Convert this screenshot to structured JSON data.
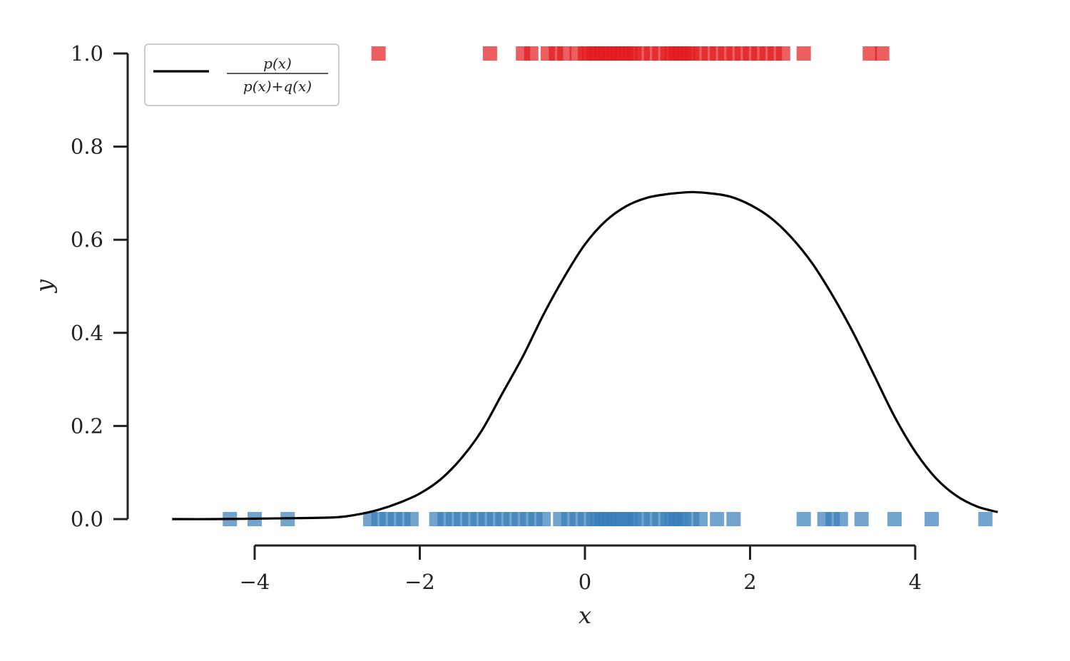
{
  "chart_data": {
    "type": "line",
    "xlabel": "x",
    "ylabel": "y",
    "xlim": [
      -5,
      5
    ],
    "ylim": [
      0,
      1
    ],
    "x_ticks": [
      -4,
      -2,
      0,
      2,
      4
    ],
    "x_tick_labels": [
      "−4",
      "−2",
      "0",
      "2",
      "4"
    ],
    "y_ticks": [
      0,
      0.2,
      0.4,
      0.6,
      0.8,
      1.0
    ],
    "y_tick_labels": [
      "0.0",
      "0.2",
      "0.4",
      "0.6",
      "0.8",
      "1.0"
    ],
    "legend": {
      "placement": "top-left",
      "entries": [
        {
          "numerator": "p(x)",
          "denominator": "p(x)+q(x)",
          "color": "#000000"
        }
      ]
    },
    "series": [
      {
        "color": "#000000",
        "x": [
          -5.0,
          -4.5,
          -4.0,
          -3.5,
          -3.0,
          -2.75,
          -2.5,
          -2.25,
          -2.0,
          -1.75,
          -1.5,
          -1.25,
          -1.0,
          -0.75,
          -0.5,
          -0.25,
          0.0,
          0.25,
          0.5,
          0.75,
          1.0,
          1.25,
          1.35,
          1.5,
          1.75,
          2.0,
          2.25,
          2.5,
          2.75,
          3.0,
          3.25,
          3.5,
          3.75,
          4.0,
          4.25,
          4.5,
          4.75,
          5.0
        ],
        "y": [
          0.0,
          0.0,
          0.001,
          0.002,
          0.004,
          0.01,
          0.02,
          0.035,
          0.055,
          0.085,
          0.13,
          0.19,
          0.27,
          0.35,
          0.44,
          0.52,
          0.59,
          0.64,
          0.672,
          0.69,
          0.698,
          0.702,
          0.702,
          0.7,
          0.693,
          0.675,
          0.647,
          0.605,
          0.55,
          0.48,
          0.4,
          0.31,
          0.22,
          0.145,
          0.088,
          0.05,
          0.027,
          0.015
        ]
      }
    ],
    "rug_top": {
      "color": "#e41a1c",
      "y": 1.0,
      "x": [
        -2.5,
        -1.15,
        -0.75,
        -0.65,
        -0.45,
        -0.35,
        -0.25,
        -0.1,
        0.0,
        0.05,
        0.1,
        0.15,
        0.2,
        0.25,
        0.3,
        0.35,
        0.4,
        0.45,
        0.5,
        0.55,
        0.6,
        0.7,
        0.8,
        0.9,
        1.0,
        1.05,
        1.1,
        1.15,
        1.2,
        1.25,
        1.3,
        1.4,
        1.5,
        1.6,
        1.7,
        1.8,
        1.9,
        2.0,
        2.1,
        2.2,
        2.3,
        2.4,
        2.65,
        3.45,
        3.6
      ]
    },
    "rug_bottom": {
      "color": "#377eb8",
      "y": 0.0,
      "x": [
        -4.3,
        -4.0,
        -3.6,
        -2.6,
        -2.5,
        -2.4,
        -2.3,
        -2.2,
        -2.1,
        -1.8,
        -1.7,
        -1.6,
        -1.5,
        -1.4,
        -1.3,
        -1.2,
        -1.1,
        -1.0,
        -0.9,
        -0.8,
        -0.7,
        -0.6,
        -0.5,
        -0.3,
        -0.2,
        -0.1,
        0.0,
        0.1,
        0.15,
        0.2,
        0.25,
        0.3,
        0.35,
        0.4,
        0.45,
        0.5,
        0.55,
        0.6,
        0.7,
        0.8,
        0.9,
        1.0,
        1.05,
        1.1,
        1.15,
        1.2,
        1.3,
        1.4,
        1.6,
        1.8,
        2.65,
        2.9,
        3.0,
        3.1,
        3.35,
        3.75,
        4.2,
        4.85
      ]
    }
  }
}
